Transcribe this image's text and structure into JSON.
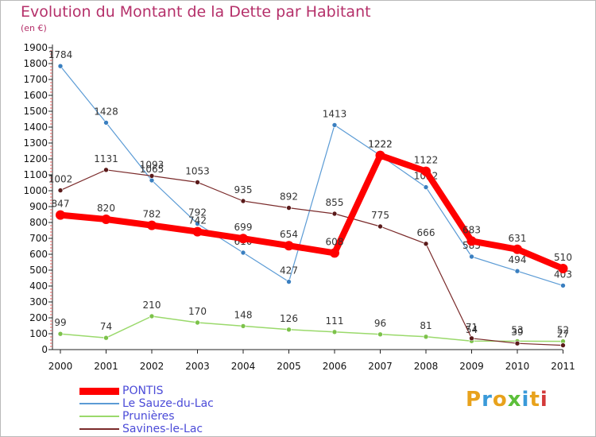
{
  "title": "Evolution du Montant de la Dette par Habitant",
  "unit_label": "(en €)",
  "logo": {
    "text": "Proxiti",
    "colors": [
      "#e8a21c",
      "#3a9ad9",
      "#e8a21c",
      "#5cbf3a",
      "#3a9ad9",
      "#e8a21c",
      "#d33a3a"
    ]
  },
  "chart_data": {
    "type": "line",
    "title": "Evolution du Montant de la Dette par Habitant",
    "ylabel": "(en €)",
    "xlabel": "",
    "ylim": [
      0,
      1900
    ],
    "yticks": [
      0,
      100,
      200,
      300,
      400,
      500,
      600,
      700,
      800,
      900,
      1000,
      1100,
      1200,
      1300,
      1400,
      1500,
      1600,
      1700,
      1800,
      1900
    ],
    "x": [
      "2000",
      "2001",
      "2002",
      "2003",
      "2004",
      "2005",
      "2006",
      "2007",
      "2008",
      "2009",
      "2010",
      "2011"
    ],
    "grid": false,
    "legend_position": "bottom-left",
    "series": [
      {
        "name": "Le Sauze-du-Lac",
        "color": "#5b9bd5",
        "marker": "#3a7fc0",
        "width": 1.2,
        "values": [
          1784,
          1428,
          1065,
          792,
          610,
          427,
          1413,
          1222,
          1022,
          585,
          494,
          403
        ]
      },
      {
        "name": "Prunières",
        "color": "#9ad96b",
        "marker": "#7cc24a",
        "width": 1.5,
        "values": [
          99,
          74,
          210,
          170,
          148,
          126,
          111,
          96,
          81,
          54,
          53,
          52
        ]
      },
      {
        "name": "Savines-le-Lac",
        "color": "#7a2a2a",
        "marker": "#5a1a1a",
        "width": 1.2,
        "values": [
          1002,
          1131,
          1093,
          1053,
          935,
          892,
          855,
          775,
          666,
          71,
          39,
          27
        ]
      },
      {
        "name": "PONTIS",
        "color": "#ff0000",
        "marker": "#ff0000",
        "width": 8,
        "values": [
          847,
          820,
          782,
          742,
          699,
          654,
          608,
          1222,
          1122,
          683,
          631,
          510
        ]
      }
    ]
  }
}
